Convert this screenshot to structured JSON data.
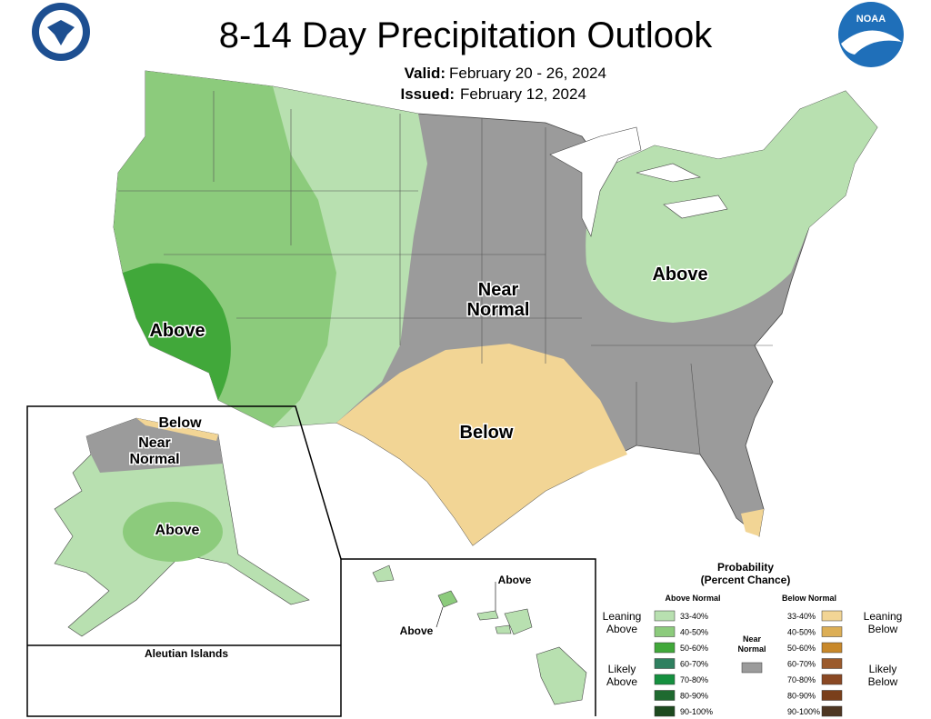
{
  "header": {
    "title": "8-14 Day Precipitation Outlook",
    "valid_label": "Valid:",
    "valid": "February 20 - 26, 2024",
    "issued_label": "Issued:",
    "issued": "February 12, 2024",
    "logo": "NOAA"
  },
  "conus": {
    "labels": [
      {
        "lines": [
          "Above"
        ]
      },
      {
        "lines": [
          "Near",
          "Normal"
        ]
      },
      {
        "lines": [
          "Above"
        ]
      },
      {
        "lines": [
          "Below"
        ]
      }
    ]
  },
  "alaska": {
    "labels": [
      {
        "lines": [
          "Below"
        ]
      },
      {
        "lines": [
          "Near",
          "Normal"
        ]
      },
      {
        "lines": [
          "Above"
        ]
      }
    ]
  },
  "aleutian": {
    "title": "Aleutian Islands"
  },
  "hawaii": {
    "labels": [
      {
        "lines": [
          "Above"
        ]
      },
      {
        "lines": [
          "Above"
        ]
      }
    ]
  },
  "legend": {
    "title": [
      "Probability",
      "(Percent Chance)"
    ],
    "above": {
      "heading": "Above Normal",
      "items": [
        {
          "label": "33-40%",
          "color": "#b8e0b0"
        },
        {
          "label": "40-50%",
          "color": "#8ccb7c"
        },
        {
          "label": "50-60%",
          "color": "#41a83a"
        },
        {
          "label": "60-70%",
          "color": "#2f8060"
        },
        {
          "label": "70-80%",
          "color": "#15903f"
        },
        {
          "label": "80-90%",
          "color": "#1f6a30"
        },
        {
          "label": "90-100%",
          "color": "#1d4a1f"
        }
      ]
    },
    "below": {
      "heading": "Below Normal",
      "items": [
        {
          "label": "33-40%",
          "color": "#f2d595"
        },
        {
          "label": "40-50%",
          "color": "#dcae55"
        },
        {
          "label": "50-60%",
          "color": "#c8882a"
        },
        {
          "label": "60-70%",
          "color": "#9b5a2c"
        },
        {
          "label": "70-80%",
          "color": "#8a4823"
        },
        {
          "label": "80-90%",
          "color": "#7a3f1b"
        },
        {
          "label": "90-100%",
          "color": "#4e3622"
        }
      ]
    },
    "near": {
      "lines": [
        "Near",
        "Normal"
      ],
      "color": "#9b9b9b"
    },
    "groups": [
      {
        "lines": [
          "Leaning",
          "Above"
        ]
      },
      {
        "lines": [
          "Likely",
          "Above"
        ]
      },
      {
        "lines": [
          "Leaning",
          "Below"
        ]
      },
      {
        "lines": [
          "Likely",
          "Below"
        ]
      }
    ]
  }
}
